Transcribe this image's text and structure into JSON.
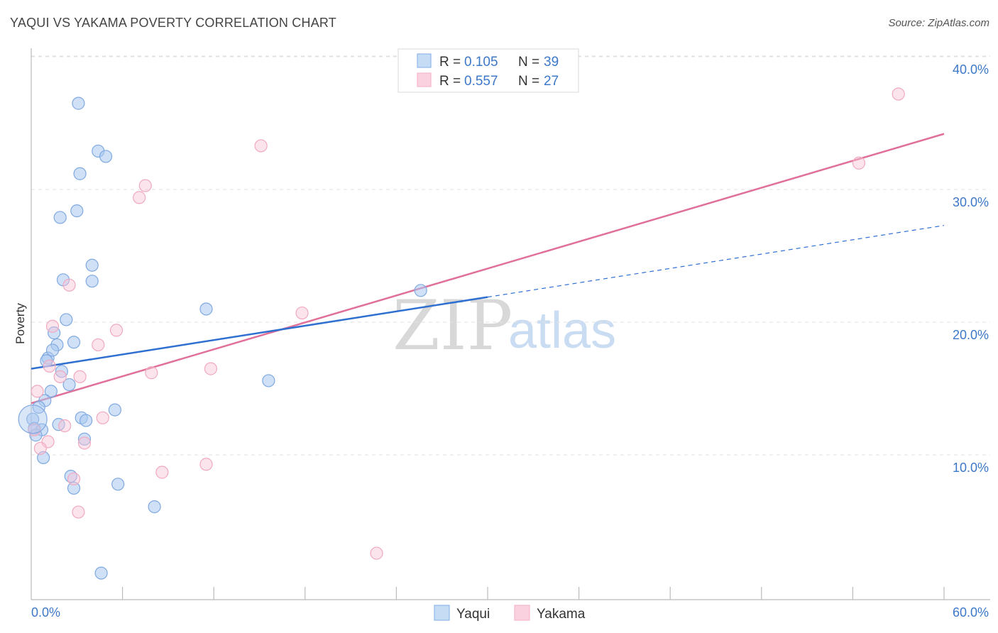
{
  "title": "YAQUI VS YAKAMA POVERTY CORRELATION CHART",
  "source": "Source: ZipAtlas.com",
  "watermark": {
    "zip": "ZIP",
    "atlas": "atlas"
  },
  "legend": {
    "rows": [
      {
        "r_label": "R =",
        "r_value": "0.105",
        "n_label": "N =",
        "n_value": "39"
      },
      {
        "r_label": "R =",
        "r_value": "0.557",
        "n_label": "N =",
        "n_value": "27"
      }
    ]
  },
  "chart_data": {
    "type": "scatter",
    "title": "YAQUI VS YAKAMA POVERTY CORRELATION CHART",
    "xlabel": "",
    "ylabel": "Poverty",
    "xlim": [
      0,
      60
    ],
    "ylim": [
      0,
      40
    ],
    "x_ticks": [
      "0.0%",
      "60.0%"
    ],
    "y_ticks": [
      {
        "value": 10,
        "label": "10.0%"
      },
      {
        "value": 20,
        "label": "20.0%"
      },
      {
        "value": 30,
        "label": "30.0%"
      },
      {
        "value": 40,
        "label": "40.0%"
      }
    ],
    "series": [
      {
        "name": "Yaqui",
        "color": "#8fb8ea",
        "line_color": "#2e6fd0",
        "trend": {
          "x0": 0,
          "y0": 17.4,
          "x1": 30,
          "y1": 22.8,
          "dash_to_x": 60,
          "dash_to_y": 28.2
        },
        "points": [
          [
            3.1,
            37.4
          ],
          [
            4.4,
            33.8
          ],
          [
            4.9,
            33.4
          ],
          [
            3.2,
            32.1
          ],
          [
            1.9,
            28.8
          ],
          [
            3.0,
            29.3
          ],
          [
            4.0,
            25.2
          ],
          [
            2.1,
            24.1
          ],
          [
            4.0,
            24.0
          ],
          [
            11.5,
            21.9
          ],
          [
            2.3,
            21.1
          ],
          [
            1.5,
            20.1
          ],
          [
            1.7,
            19.2
          ],
          [
            2.8,
            19.4
          ],
          [
            1.1,
            18.2
          ],
          [
            1.4,
            18.8
          ],
          [
            1.0,
            18.0
          ],
          [
            2.0,
            17.2
          ],
          [
            15.6,
            16.5
          ],
          [
            2.5,
            16.2
          ],
          [
            1.3,
            15.7
          ],
          [
            0.9,
            15.0
          ],
          [
            0.5,
            14.5
          ],
          [
            5.5,
            14.3
          ],
          [
            3.3,
            13.7
          ],
          [
            0.1,
            13.6
          ],
          [
            3.6,
            13.5
          ],
          [
            1.8,
            13.2
          ],
          [
            0.2,
            12.9
          ],
          [
            0.7,
            12.8
          ],
          [
            0.3,
            12.4
          ],
          [
            3.5,
            12.1
          ],
          [
            0.8,
            10.7
          ],
          [
            2.6,
            9.3
          ],
          [
            2.8,
            8.4
          ],
          [
            5.7,
            8.7
          ],
          [
            8.1,
            7.0
          ],
          [
            25.6,
            23.3
          ],
          [
            4.6,
            2.0
          ]
        ]
      },
      {
        "name": "Yakama",
        "color": "#f5b7cb",
        "line_color": "#e0709a",
        "trend": {
          "x0": 0,
          "y0": 14.8,
          "x1": 60,
          "y1": 35.1
        },
        "points": [
          [
            57.0,
            38.1
          ],
          [
            15.1,
            34.2
          ],
          [
            54.4,
            32.9
          ],
          [
            7.5,
            31.2
          ],
          [
            7.1,
            30.3
          ],
          [
            2.5,
            23.7
          ],
          [
            17.8,
            21.6
          ],
          [
            1.4,
            20.6
          ],
          [
            5.6,
            20.3
          ],
          [
            4.4,
            19.2
          ],
          [
            1.2,
            17.6
          ],
          [
            11.8,
            17.4
          ],
          [
            7.9,
            17.1
          ],
          [
            1.9,
            16.8
          ],
          [
            3.2,
            16.8
          ],
          [
            0.4,
            15.7
          ],
          [
            4.7,
            13.7
          ],
          [
            2.2,
            13.1
          ],
          [
            0.2,
            12.8
          ],
          [
            1.1,
            11.9
          ],
          [
            3.5,
            11.8
          ],
          [
            0.6,
            11.4
          ],
          [
            11.5,
            10.2
          ],
          [
            8.6,
            9.6
          ],
          [
            2.8,
            9.1
          ],
          [
            3.1,
            6.6
          ],
          [
            22.7,
            3.5
          ]
        ]
      }
    ]
  }
}
